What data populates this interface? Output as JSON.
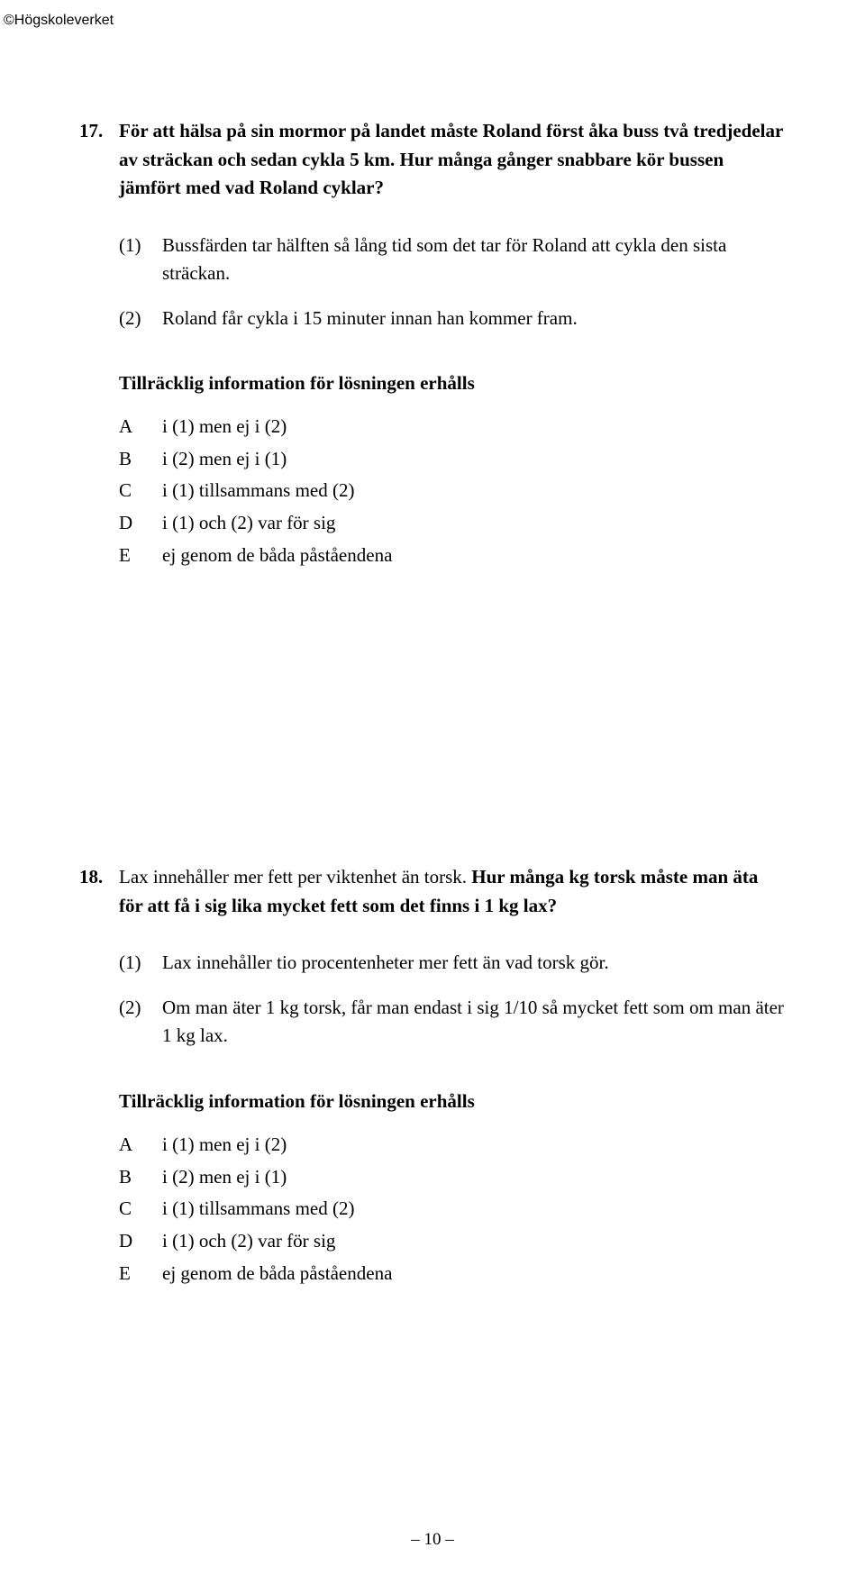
{
  "copyright": "©Högskoleverket",
  "page_number": "– 10 –",
  "q17": {
    "number": "17.",
    "text": "För att hälsa på sin mormor på landet måste Roland först åka buss två tredjedelar av sträckan och sedan cykla 5 km. Hur många gånger snabbare kör bussen jämfört med vad Roland cyklar?",
    "statements": [
      {
        "num": "(1)",
        "text": "Bussfärden tar hälften så lång tid som det tar för Roland att cykla den sista sträckan."
      },
      {
        "num": "(2)",
        "text": "Roland får cykla i 15 minuter innan han kommer fram."
      }
    ],
    "answer_heading": "Tillräcklig information för lösningen erhålls",
    "answers": [
      {
        "letter": "A",
        "text": "i (1) men ej i (2)"
      },
      {
        "letter": "B",
        "text": "i (2) men ej i (1)"
      },
      {
        "letter": "C",
        "text": "i (1) tillsammans med (2)"
      },
      {
        "letter": "D",
        "text": "i (1) och (2) var för sig"
      },
      {
        "letter": "E",
        "text": "ej genom de båda påståendena"
      }
    ]
  },
  "q18": {
    "number": "18.",
    "text_plain": "Lax innehåller mer fett per viktenhet än torsk. ",
    "text_bold": "Hur många kg torsk måste man äta för att få i sig lika mycket fett som det finns i 1 kg lax?",
    "statements": [
      {
        "num": "(1)",
        "text": "Lax innehåller tio procentenheter mer fett än vad torsk gör."
      },
      {
        "num": "(2)",
        "text": "Om man äter 1 kg torsk, får man endast i sig 1/10 så mycket fett som om man äter 1 kg lax."
      }
    ],
    "answer_heading": "Tillräcklig information för lösningen erhålls",
    "answers": [
      {
        "letter": "A",
        "text": "i (1) men ej i (2)"
      },
      {
        "letter": "B",
        "text": "i (2) men ej i (1)"
      },
      {
        "letter": "C",
        "text": "i (1) tillsammans med (2)"
      },
      {
        "letter": "D",
        "text": "i (1) och (2) var för sig"
      },
      {
        "letter": "E",
        "text": "ej genom de båda påståendena"
      }
    ]
  }
}
